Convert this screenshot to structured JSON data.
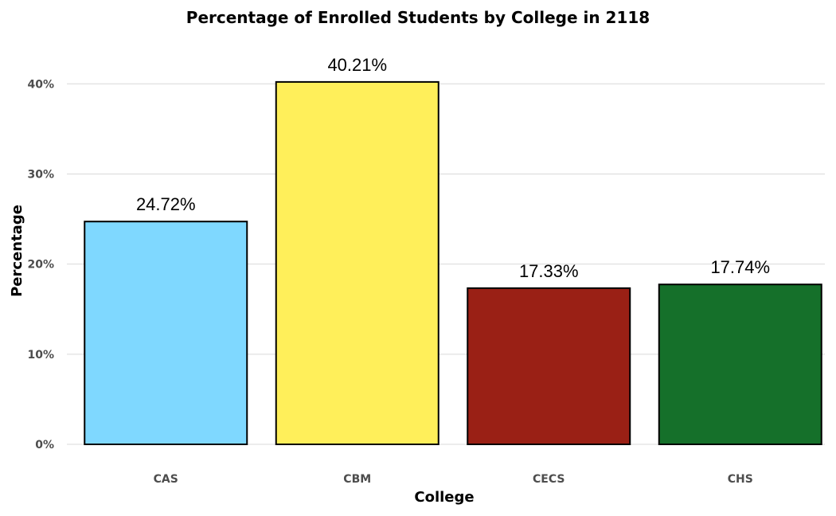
{
  "chart_data": {
    "type": "bar",
    "title": "Percentage of Enrolled Students by College in 2118",
    "xlabel": "College",
    "ylabel": "Percentage",
    "categories": [
      "CAS",
      "CBM",
      "CECS",
      "CHS"
    ],
    "values": [
      24.72,
      40.21,
      17.33,
      17.74
    ],
    "data_labels": [
      "24.72%",
      "40.21%",
      "17.33%",
      "17.74%"
    ],
    "colors": [
      "#7fd8ff",
      "#ffef5a",
      "#9a2015",
      "#15702a"
    ],
    "ylim": [
      0,
      44
    ],
    "yticks": [
      0,
      10,
      20,
      30,
      40
    ],
    "ytick_labels": [
      "0%",
      "10%",
      "20%",
      "30%",
      "40%"
    ],
    "grid": true,
    "legend": "none"
  }
}
